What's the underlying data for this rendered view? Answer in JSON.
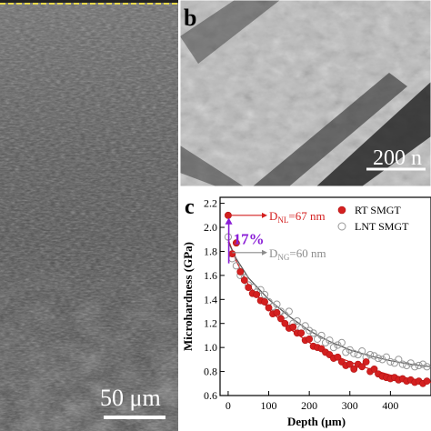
{
  "panel_a": {
    "scale_bar_label": "50 μm"
  },
  "panel_b": {
    "panel_letter": "b",
    "scale_bar_label": "200 n"
  },
  "panel_c": {
    "panel_letter": "c",
    "annotations": {
      "dnl_prefix": "D",
      "dnl_sub": "NL",
      "dnl_value": "=67 nm",
      "percent": "17%",
      "dng_prefix": "D",
      "dng_sub": "NG",
      "dng_value": "=60 nm"
    },
    "colors": {
      "rt": "#d42020",
      "lnt": "#999999",
      "annotation_red": "#d42020",
      "annotation_purple": "#8a1ed6",
      "annotation_gray": "#8c8c8c"
    }
  },
  "chart_data": {
    "type": "scatter",
    "xlabel": "Depth (μm)",
    "ylabel": "Microhardness (GPa)",
    "xlim": [
      -20,
      500
    ],
    "ylim": [
      0.6,
      2.25
    ],
    "xticks": [
      0,
      100,
      200,
      300,
      400
    ],
    "yticks": [
      0.6,
      0.8,
      1.0,
      1.2,
      1.4,
      1.6,
      1.8,
      2.0,
      2.2
    ],
    "xtick_labels": [
      "0",
      "100",
      "200",
      "300",
      "400"
    ],
    "ytick_labels": [
      "0.6",
      "0.8",
      "1.0",
      "1.2",
      "1.4",
      "1.6",
      "1.8",
      "2.0",
      "2.2"
    ],
    "legend_position": "top-right",
    "series": [
      {
        "name": "RT SMGT",
        "marker": "filled-circle",
        "points": [
          [
            0,
            2.1
          ],
          [
            10,
            1.78
          ],
          [
            20,
            1.87
          ],
          [
            30,
            1.63
          ],
          [
            40,
            1.56
          ],
          [
            50,
            1.5
          ],
          [
            60,
            1.45
          ],
          [
            70,
            1.44
          ],
          [
            80,
            1.39
          ],
          [
            90,
            1.38
          ],
          [
            100,
            1.33
          ],
          [
            110,
            1.28
          ],
          [
            120,
            1.29
          ],
          [
            130,
            1.24
          ],
          [
            140,
            1.2
          ],
          [
            150,
            1.16
          ],
          [
            160,
            1.17
          ],
          [
            170,
            1.12
          ],
          [
            180,
            1.12
          ],
          [
            190,
            1.06
          ],
          [
            200,
            1.07
          ],
          [
            210,
            1.01
          ],
          [
            220,
            1.0
          ],
          [
            230,
            0.99
          ],
          [
            240,
            0.96
          ],
          [
            250,
            0.94
          ],
          [
            260,
            0.91
          ],
          [
            270,
            0.92
          ],
          [
            280,
            0.88
          ],
          [
            290,
            0.85
          ],
          [
            300,
            0.86
          ],
          [
            310,
            0.82
          ],
          [
            320,
            0.86
          ],
          [
            330,
            0.84
          ],
          [
            340,
            0.88
          ],
          [
            350,
            0.8
          ],
          [
            360,
            0.82
          ],
          [
            370,
            0.78
          ],
          [
            380,
            0.76
          ],
          [
            390,
            0.75
          ],
          [
            400,
            0.74
          ],
          [
            410,
            0.75
          ],
          [
            420,
            0.73
          ],
          [
            430,
            0.74
          ],
          [
            440,
            0.72
          ],
          [
            450,
            0.73
          ],
          [
            460,
            0.71
          ],
          [
            470,
            0.72
          ],
          [
            480,
            0.7
          ],
          [
            490,
            0.72
          ]
        ],
        "fit": [
          [
            0,
            1.9
          ],
          [
            20,
            1.72
          ],
          [
            50,
            1.52
          ],
          [
            100,
            1.32
          ],
          [
            150,
            1.16
          ],
          [
            200,
            1.04
          ],
          [
            250,
            0.95
          ],
          [
            300,
            0.88
          ],
          [
            350,
            0.82
          ],
          [
            400,
            0.77
          ],
          [
            450,
            0.74
          ],
          [
            500,
            0.71
          ]
        ]
      },
      {
        "name": "LNT SMGT",
        "marker": "open-circle",
        "points": [
          [
            0,
            1.92
          ],
          [
            10,
            1.74
          ],
          [
            20,
            1.68
          ],
          [
            30,
            1.6
          ],
          [
            40,
            1.58
          ],
          [
            50,
            1.52
          ],
          [
            60,
            1.5
          ],
          [
            70,
            1.46
          ],
          [
            80,
            1.48
          ],
          [
            90,
            1.44
          ],
          [
            100,
            1.38
          ],
          [
            110,
            1.34
          ],
          [
            120,
            1.36
          ],
          [
            130,
            1.3
          ],
          [
            140,
            1.27
          ],
          [
            150,
            1.3
          ],
          [
            160,
            1.2
          ],
          [
            170,
            1.22
          ],
          [
            180,
            1.16
          ],
          [
            190,
            1.18
          ],
          [
            200,
            1.14
          ],
          [
            210,
            1.12
          ],
          [
            220,
            1.07
          ],
          [
            230,
            1.1
          ],
          [
            240,
            1.04
          ],
          [
            250,
            1.06
          ],
          [
            260,
            1.0
          ],
          [
            270,
            1.02
          ],
          [
            280,
            1.04
          ],
          [
            290,
            0.96
          ],
          [
            300,
            0.98
          ],
          [
            310,
            0.95
          ],
          [
            320,
            0.94
          ],
          [
            330,
            0.97
          ],
          [
            340,
            0.92
          ],
          [
            350,
            0.94
          ],
          [
            360,
            0.93
          ],
          [
            370,
            0.91
          ],
          [
            380,
            0.9
          ],
          [
            390,
            0.92
          ],
          [
            400,
            0.88
          ],
          [
            410,
            0.87
          ],
          [
            420,
            0.9
          ],
          [
            430,
            0.86
          ],
          [
            440,
            0.85
          ],
          [
            450,
            0.87
          ],
          [
            460,
            0.84
          ],
          [
            470,
            0.85
          ],
          [
            480,
            0.86
          ],
          [
            490,
            0.84
          ]
        ],
        "fit": [
          [
            0,
            1.88
          ],
          [
            20,
            1.74
          ],
          [
            50,
            1.58
          ],
          [
            100,
            1.4
          ],
          [
            150,
            1.26
          ],
          [
            200,
            1.14
          ],
          [
            250,
            1.05
          ],
          [
            300,
            0.98
          ],
          [
            350,
            0.93
          ],
          [
            400,
            0.89
          ],
          [
            450,
            0.86
          ],
          [
            500,
            0.84
          ]
        ]
      }
    ]
  }
}
